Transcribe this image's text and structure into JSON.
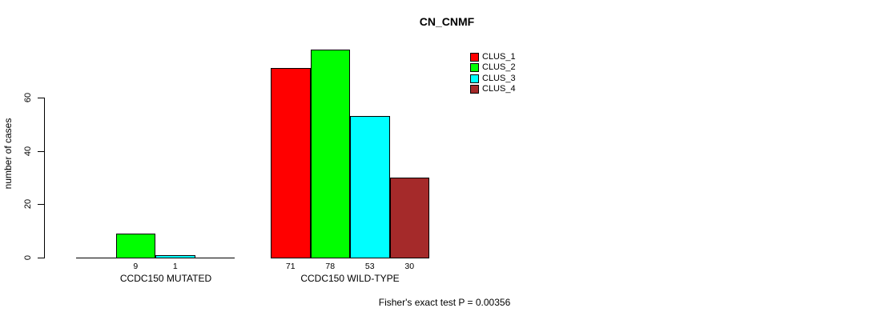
{
  "chart_data": {
    "type": "bar",
    "title": "CN_CNMF",
    "ylabel": "number of cases",
    "xlabel": "",
    "yticks": [
      0,
      20,
      40,
      60
    ],
    "ylim": [
      0,
      78
    ],
    "grid": false,
    "legend_position": "right",
    "series": [
      {
        "name": "CLUS_1",
        "color": "#ff0000"
      },
      {
        "name": "CLUS_2",
        "color": "#00ff00"
      },
      {
        "name": "CLUS_3",
        "color": "#00ffff"
      },
      {
        "name": "CLUS_4",
        "color": "#a52a2a"
      }
    ],
    "groups": [
      {
        "label": "CCDC150 MUTATED",
        "values": [
          0,
          9,
          1,
          0
        ],
        "bar_labels": [
          "",
          "9",
          "1",
          ""
        ]
      },
      {
        "label": "CCDC150 WILD-TYPE",
        "values": [
          71,
          78,
          53,
          30
        ],
        "bar_labels": [
          "71",
          "78",
          "53",
          "30"
        ]
      }
    ],
    "footnote": "Fisher's exact test P = 0.00356"
  }
}
